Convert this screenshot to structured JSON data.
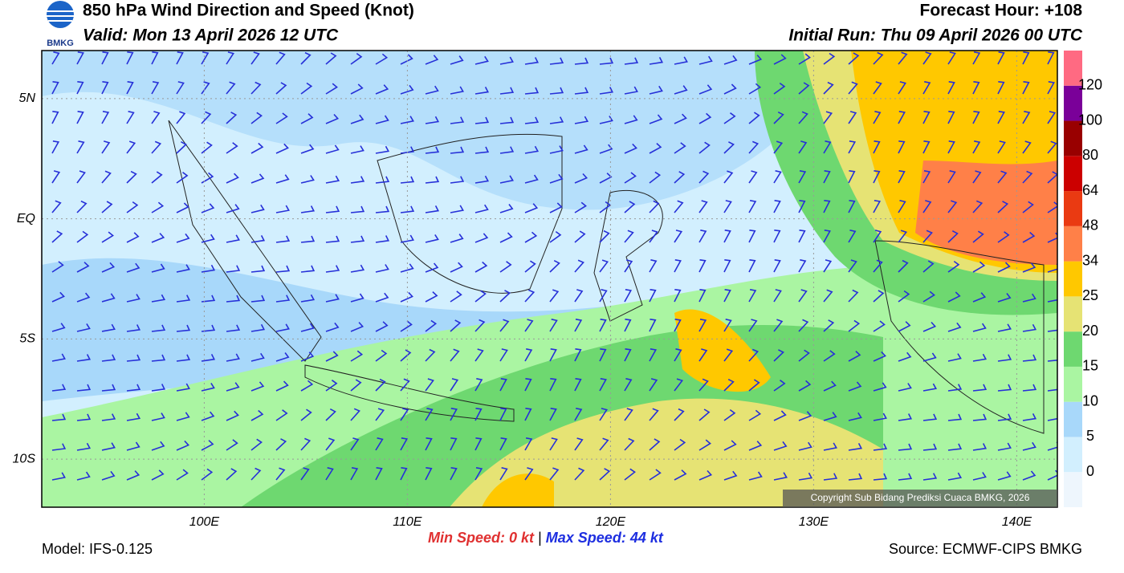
{
  "header": {
    "title": "850 hPa Wind Direction and Speed (Knot)",
    "valid": "Valid: Mon 13 April 2026 12 UTC",
    "forecast_hour": "Forecast Hour: +108",
    "initial_run": "Initial Run: Thu 09 April 2026 00 UTC",
    "logo": "BMKG"
  },
  "map": {
    "xlim": [
      92,
      142
    ],
    "ylim": [
      -12,
      7
    ],
    "xticks": [
      {
        "value": 100,
        "label": "100E"
      },
      {
        "value": 110,
        "label": "110E"
      },
      {
        "value": 120,
        "label": "120E"
      },
      {
        "value": 130,
        "label": "130E"
      },
      {
        "value": 140,
        "label": "140E"
      }
    ],
    "yticks": [
      {
        "value": 5,
        "label": "5N"
      },
      {
        "value": 0,
        "label": "EQ"
      },
      {
        "value": -5,
        "label": "5S"
      },
      {
        "value": -10,
        "label": "10S"
      }
    ],
    "copyright": "Copyright Sub Bidang Prediksi Cuaca BMKG, 2026"
  },
  "colorbar": {
    "levels": [
      0,
      5,
      10,
      15,
      20,
      25,
      34,
      48,
      64,
      80,
      100,
      120
    ],
    "colors": [
      "#eef6fd",
      "#d2effe",
      "#a8d8fa",
      "#aaf5a2",
      "#6ed870",
      "#e6e374",
      "#ffc800",
      "#ff8048",
      "#ea3a12",
      "#cc0000",
      "#990000",
      "#7a0099",
      "#ff6a82"
    ]
  },
  "footer": {
    "model": "Model: IFS-0.125",
    "min_speed_label": "Min Speed:",
    "min_speed": "0 kt",
    "separator": "|",
    "max_speed_label": "Max Speed:",
    "max_speed": "44 kt",
    "source": "Source: ECMWF-CIPS BMKG"
  }
}
